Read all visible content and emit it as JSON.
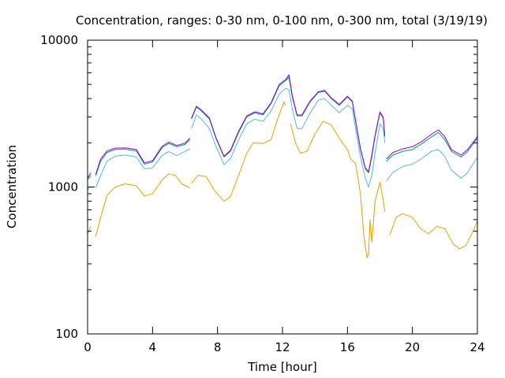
{
  "chart_data": {
    "type": "line",
    "title": "Concentration, ranges: 0-30 nm, 0-100 nm, 0-300 nm, total (3/19/19)",
    "xlabel": "Time [hour]",
    "ylabel": "Concentration",
    "xlim": [
      0,
      24
    ],
    "ylim": [
      100,
      10000
    ],
    "yscale": "log",
    "grid": false,
    "legend": "none",
    "x_ticks": [
      0,
      4,
      8,
      12,
      16,
      20,
      24
    ],
    "x_tick_labels": [
      "0",
      "4",
      "8",
      "12",
      "16",
      "20",
      "24"
    ],
    "y_ticks": [
      100,
      1000,
      10000
    ],
    "y_tick_labels": [
      "100",
      "1000",
      "10000"
    ],
    "series": [
      {
        "color": "#e69f00",
        "segments": [
          [
            [
              0.0,
              480
            ],
            [
              0.2,
              540
            ]
          ],
          [
            [
              0.5,
              460
            ],
            [
              0.8,
              620
            ],
            [
              1.2,
              880
            ],
            [
              1.7,
              1000
            ],
            [
              2.3,
              1050
            ],
            [
              3.0,
              1020
            ],
            [
              3.5,
              870
            ],
            [
              4.0,
              900
            ],
            [
              4.6,
              1120
            ],
            [
              5.0,
              1230
            ],
            [
              5.4,
              1200
            ],
            [
              5.8,
              1050
            ],
            [
              6.2,
              1000
            ],
            [
              6.3,
              980
            ]
          ],
          [
            [
              6.4,
              1060
            ],
            [
              6.8,
              1200
            ],
            [
              7.3,
              1180
            ],
            [
              7.8,
              950
            ],
            [
              8.4,
              800
            ],
            [
              8.8,
              860
            ],
            [
              9.3,
              1200
            ],
            [
              9.8,
              1700
            ],
            [
              10.2,
              2000
            ],
            [
              10.8,
              1980
            ],
            [
              11.3,
              2100
            ],
            [
              11.7,
              2900
            ],
            [
              12.1,
              3800
            ],
            [
              12.2,
              3600
            ]
          ],
          [
            [
              12.5,
              2700
            ],
            [
              12.8,
              2000
            ],
            [
              13.1,
              1700
            ],
            [
              13.5,
              1750
            ],
            [
              14.0,
              2300
            ],
            [
              14.5,
              2800
            ],
            [
              15.0,
              2650
            ],
            [
              15.5,
              2150
            ],
            [
              16.0,
              1800
            ],
            [
              16.2,
              1550
            ],
            [
              16.5,
              1450
            ],
            [
              16.8,
              900
            ],
            [
              17.0,
              480
            ],
            [
              17.2,
              330
            ],
            [
              17.3,
              350
            ],
            [
              17.4,
              600
            ],
            [
              17.5,
              420
            ],
            [
              17.7,
              800
            ],
            [
              18.0,
              1080
            ],
            [
              18.2,
              820
            ],
            [
              18.3,
              680
            ]
          ],
          [
            [
              18.6,
              470
            ],
            [
              19.0,
              620
            ],
            [
              19.4,
              660
            ],
            [
              20.0,
              620
            ],
            [
              20.5,
              520
            ],
            [
              21.0,
              480
            ],
            [
              21.5,
              540
            ],
            [
              22.0,
              520
            ],
            [
              22.5,
              410
            ],
            [
              22.9,
              380
            ],
            [
              23.3,
              400
            ],
            [
              23.8,
              520
            ],
            [
              24.0,
              590
            ]
          ]
        ]
      },
      {
        "color": "#56b4e9",
        "segments": [
          [
            [
              0.0,
              950
            ],
            [
              0.1,
              1000
            ]
          ],
          [
            [
              0.5,
              990
            ],
            [
              0.8,
              1200
            ],
            [
              1.2,
              1500
            ],
            [
              1.7,
              1620
            ],
            [
              2.3,
              1650
            ],
            [
              3.0,
              1600
            ],
            [
              3.5,
              1330
            ],
            [
              4.0,
              1350
            ],
            [
              4.6,
              1650
            ],
            [
              5.0,
              1740
            ],
            [
              5.5,
              1640
            ],
            [
              6.0,
              1750
            ],
            [
              6.3,
              1820
            ]
          ],
          [
            [
              6.4,
              2500
            ],
            [
              6.7,
              3100
            ],
            [
              7.0,
              2900
            ],
            [
              7.5,
              2500
            ],
            [
              7.9,
              1900
            ],
            [
              8.4,
              1420
            ],
            [
              8.8,
              1560
            ],
            [
              9.3,
              2100
            ],
            [
              9.8,
              2700
            ],
            [
              10.3,
              2900
            ],
            [
              10.8,
              2800
            ],
            [
              11.3,
              3300
            ],
            [
              11.8,
              4300
            ],
            [
              12.2,
              4700
            ],
            [
              12.4,
              4600
            ],
            [
              12.6,
              3400
            ],
            [
              12.9,
              2500
            ],
            [
              13.2,
              2500
            ],
            [
              13.7,
              3200
            ],
            [
              14.2,
              3900
            ],
            [
              14.6,
              4000
            ],
            [
              15.0,
              3600
            ],
            [
              15.5,
              3200
            ],
            [
              16.0,
              3600
            ],
            [
              16.3,
              3400
            ],
            [
              16.5,
              2500
            ],
            [
              16.8,
              1600
            ],
            [
              17.1,
              1150
            ],
            [
              17.3,
              1000
            ],
            [
              17.5,
              1200
            ],
            [
              17.7,
              1700
            ],
            [
              18.0,
              2700
            ],
            [
              18.2,
              2500
            ],
            [
              18.3,
              2000
            ]
          ],
          [
            [
              18.4,
              1100
            ],
            [
              18.8,
              1260
            ],
            [
              19.4,
              1380
            ],
            [
              20.0,
              1430
            ],
            [
              20.6,
              1570
            ],
            [
              21.2,
              1760
            ],
            [
              21.6,
              1800
            ],
            [
              22.0,
              1620
            ],
            [
              22.4,
              1300
            ],
            [
              23.0,
              1150
            ],
            [
              23.4,
              1250
            ],
            [
              24.0,
              1600
            ]
          ]
        ]
      },
      {
        "color": "#009e73",
        "segments": [
          [
            [
              0.0,
              1120
            ],
            [
              0.2,
              1200
            ]
          ],
          [
            [
              0.5,
              1190
            ],
            [
              0.8,
              1500
            ],
            [
              1.2,
              1720
            ],
            [
              1.7,
              1800
            ],
            [
              2.3,
              1810
            ],
            [
              3.0,
              1760
            ],
            [
              3.5,
              1430
            ],
            [
              4.0,
              1480
            ],
            [
              4.6,
              1860
            ],
            [
              5.0,
              1980
            ],
            [
              5.5,
              1880
            ],
            [
              6.0,
              1950
            ],
            [
              6.3,
              2100
            ]
          ],
          [
            [
              6.4,
              2900
            ],
            [
              6.7,
              3500
            ],
            [
              7.0,
              3300
            ],
            [
              7.5,
              2900
            ],
            [
              7.9,
              2150
            ],
            [
              8.4,
              1600
            ],
            [
              8.8,
              1750
            ],
            [
              9.3,
              2350
            ],
            [
              9.8,
              3000
            ],
            [
              10.3,
              3200
            ],
            [
              10.8,
              3100
            ],
            [
              11.3,
              3700
            ],
            [
              11.8,
              4900
            ],
            [
              12.2,
              5300
            ],
            [
              12.4,
              5600
            ],
            [
              12.6,
              4100
            ],
            [
              12.9,
              3050
            ],
            [
              13.2,
              3050
            ],
            [
              13.7,
              3800
            ],
            [
              14.2,
              4400
            ],
            [
              14.6,
              4500
            ],
            [
              15.0,
              4000
            ],
            [
              15.5,
              3600
            ],
            [
              16.0,
              4100
            ],
            [
              16.3,
              3800
            ],
            [
              16.5,
              2800
            ],
            [
              16.8,
              1800
            ],
            [
              17.1,
              1330
            ],
            [
              17.3,
              1250
            ],
            [
              17.5,
              1600
            ],
            [
              17.7,
              2200
            ],
            [
              18.0,
              3200
            ],
            [
              18.2,
              2950
            ],
            [
              18.3,
              2200
            ]
          ],
          [
            [
              18.4,
              1500
            ],
            [
              18.8,
              1650
            ],
            [
              19.4,
              1750
            ],
            [
              20.0,
              1800
            ],
            [
              20.6,
              1980
            ],
            [
              21.2,
              2200
            ],
            [
              21.6,
              2350
            ],
            [
              22.0,
              2100
            ],
            [
              22.4,
              1750
            ],
            [
              23.0,
              1600
            ],
            [
              23.4,
              1750
            ],
            [
              24.0,
              2150
            ]
          ]
        ]
      },
      {
        "color": "#9400d3",
        "segments": [
          [
            [
              0.0,
              1150
            ],
            [
              0.2,
              1250
            ]
          ],
          [
            [
              0.5,
              1220
            ],
            [
              0.8,
              1550
            ],
            [
              1.2,
              1760
            ],
            [
              1.7,
              1840
            ],
            [
              2.3,
              1850
            ],
            [
              3.0,
              1800
            ],
            [
              3.5,
              1460
            ],
            [
              4.0,
              1510
            ],
            [
              4.6,
              1900
            ],
            [
              5.0,
              2020
            ],
            [
              5.5,
              1920
            ],
            [
              6.0,
              1990
            ],
            [
              6.3,
              2150
            ]
          ],
          [
            [
              6.4,
              2950
            ],
            [
              6.7,
              3550
            ],
            [
              7.0,
              3350
            ],
            [
              7.5,
              2950
            ],
            [
              7.9,
              2180
            ],
            [
              8.4,
              1620
            ],
            [
              8.8,
              1780
            ],
            [
              9.3,
              2400
            ],
            [
              9.8,
              3050
            ],
            [
              10.3,
              3250
            ],
            [
              10.8,
              3150
            ],
            [
              11.3,
              3750
            ],
            [
              11.8,
              5000
            ],
            [
              12.2,
              5400
            ],
            [
              12.4,
              5800
            ],
            [
              12.6,
              4200
            ],
            [
              12.9,
              3100
            ],
            [
              13.2,
              3100
            ],
            [
              13.7,
              3850
            ],
            [
              14.2,
              4450
            ],
            [
              14.6,
              4550
            ],
            [
              15.0,
              4050
            ],
            [
              15.5,
              3650
            ],
            [
              16.0,
              4150
            ],
            [
              16.3,
              3850
            ],
            [
              16.5,
              2850
            ],
            [
              16.8,
              1830
            ],
            [
              17.1,
              1350
            ],
            [
              17.3,
              1270
            ],
            [
              17.5,
              1650
            ],
            [
              17.7,
              2250
            ],
            [
              18.0,
              3250
            ],
            [
              18.2,
              3000
            ],
            [
              18.3,
              2250
            ]
          ],
          [
            [
              18.4,
              1550
            ],
            [
              18.8,
              1720
            ],
            [
              19.4,
              1820
            ],
            [
              20.0,
              1880
            ],
            [
              20.6,
              2050
            ],
            [
              21.2,
              2300
            ],
            [
              21.6,
              2450
            ],
            [
              22.0,
              2200
            ],
            [
              22.4,
              1800
            ],
            [
              23.0,
              1650
            ],
            [
              23.4,
              1800
            ],
            [
              24.0,
              2200
            ]
          ]
        ]
      }
    ]
  }
}
